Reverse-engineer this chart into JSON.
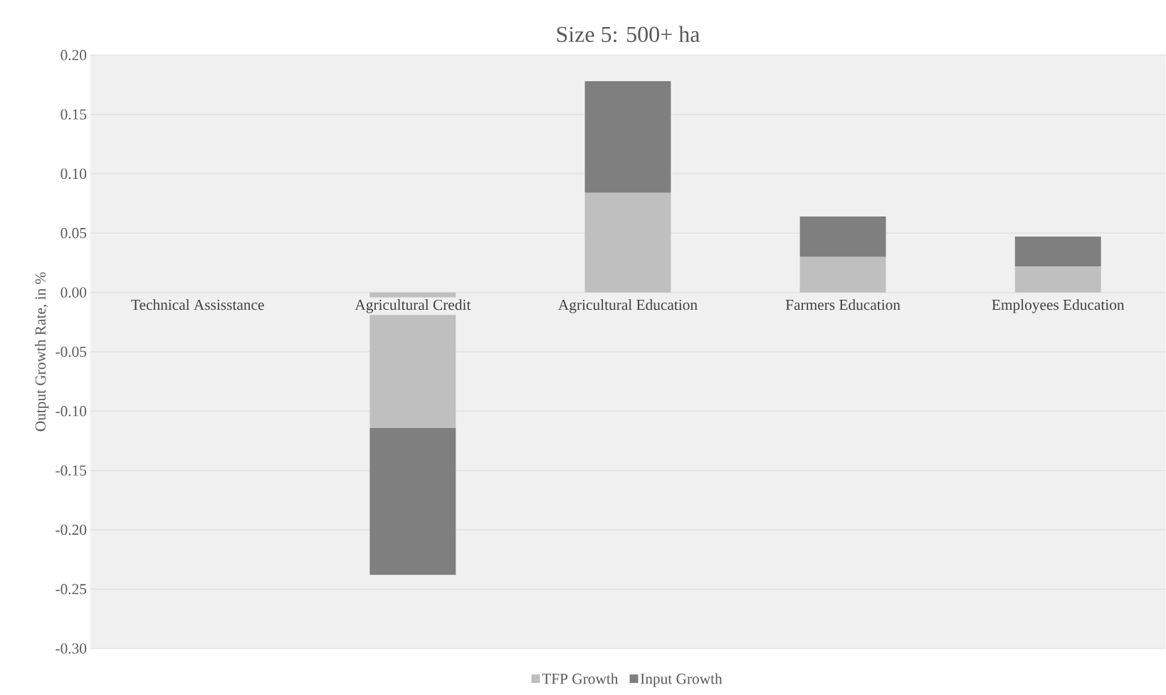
{
  "chart_data": {
    "type": "bar",
    "title": "Size 5: 500+ ha",
    "ylabel": "Output Growth Rate, in %",
    "categories": [
      "Technical Assisstance",
      "Agricultural Credit",
      "Agricultural Education",
      "Farmers Education",
      "Employees Education"
    ],
    "stacked": true,
    "series": [
      {
        "name": "TFP Growth",
        "color": "#bfbfbf",
        "values": [
          0,
          -0.114,
          0.084,
          0.03,
          0.022
        ]
      },
      {
        "name": "Input Growth",
        "color": "#7f7f7f",
        "values": [
          0,
          -0.124,
          0.094,
          0.034,
          0.025
        ]
      }
    ],
    "ylim": [
      -0.3,
      0.2
    ],
    "yticks": [
      {
        "value": -0.3,
        "label": "-0.30"
      },
      {
        "value": -0.25,
        "label": "-0.25"
      },
      {
        "value": -0.2,
        "label": "-0.20"
      },
      {
        "value": -0.15,
        "label": "-0.15"
      },
      {
        "value": -0.1,
        "label": "-0.10"
      },
      {
        "value": -0.05,
        "label": "-0.05"
      },
      {
        "value": 0,
        "label": "0.00"
      },
      {
        "value": 0.05,
        "label": "0.05"
      },
      {
        "value": 0.1,
        "label": "0.10"
      },
      {
        "value": 0.15,
        "label": "0.15"
      },
      {
        "value": 0.2,
        "label": "0.20"
      }
    ],
    "grid": "y",
    "legend": "bottom"
  }
}
